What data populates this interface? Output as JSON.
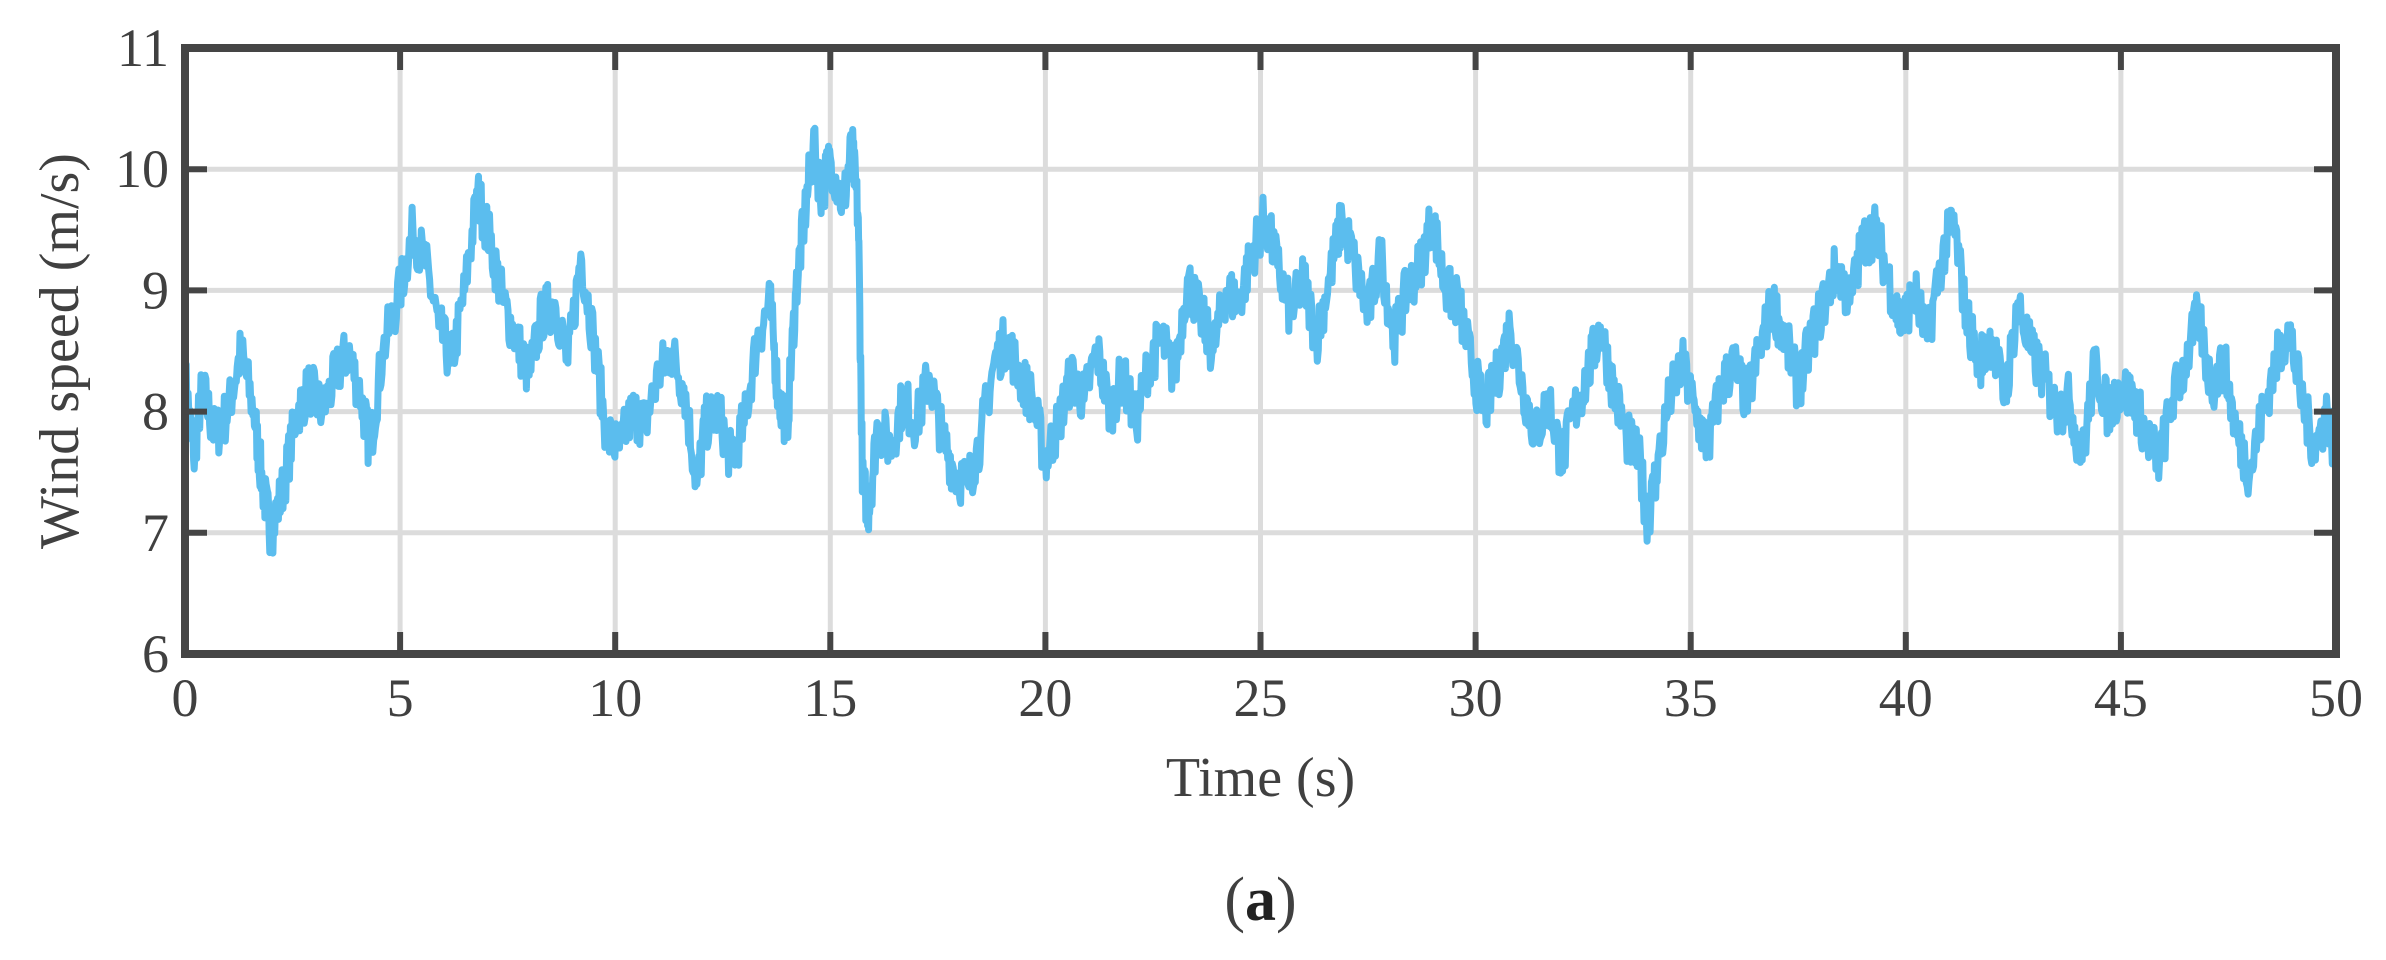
{
  "chart_data": {
    "type": "line",
    "title": "",
    "xlabel": "Time (s)",
    "ylabel": "Wind speed (m/s)",
    "xlim": [
      0,
      50
    ],
    "ylim": [
      6,
      11
    ],
    "xticks": [
      "0",
      "5",
      "10",
      "15",
      "20",
      "25",
      "30",
      "35",
      "40",
      "45",
      "50"
    ],
    "yticks": [
      "6",
      "7",
      "8",
      "9",
      "10",
      "11"
    ],
    "grid": true,
    "legend": "none",
    "panel_label": "(a)",
    "series": [
      {
        "color": "#5bbdee",
        "points": [
          [
            0.0,
            8.3
          ],
          [
            0.2,
            7.6
          ],
          [
            0.4,
            8.2
          ],
          [
            0.7,
            7.8
          ],
          [
            1.0,
            8.0
          ],
          [
            1.3,
            8.5
          ],
          [
            1.6,
            8.0
          ],
          [
            1.8,
            7.4
          ],
          [
            2.0,
            7.0
          ],
          [
            2.3,
            7.4
          ],
          [
            2.6,
            8.0
          ],
          [
            2.9,
            8.2
          ],
          [
            3.2,
            8.0
          ],
          [
            3.5,
            8.3
          ],
          [
            3.8,
            8.5
          ],
          [
            4.1,
            8.1
          ],
          [
            4.3,
            7.7
          ],
          [
            4.6,
            8.5
          ],
          [
            5.0,
            9.0
          ],
          [
            5.3,
            9.5
          ],
          [
            5.6,
            9.2
          ],
          [
            5.9,
            8.7
          ],
          [
            6.2,
            8.4
          ],
          [
            6.5,
            9.0
          ],
          [
            6.8,
            9.8
          ],
          [
            7.1,
            9.4
          ],
          [
            7.4,
            8.9
          ],
          [
            7.7,
            8.6
          ],
          [
            8.0,
            8.3
          ],
          [
            8.3,
            8.8
          ],
          [
            8.6,
            8.9
          ],
          [
            8.9,
            8.4
          ],
          [
            9.2,
            9.3
          ],
          [
            9.5,
            8.6
          ],
          [
            9.8,
            7.8
          ],
          [
            10.1,
            7.7
          ],
          [
            10.4,
            8.0
          ],
          [
            10.7,
            7.9
          ],
          [
            11.0,
            8.3
          ],
          [
            11.3,
            8.5
          ],
          [
            11.6,
            8.2
          ],
          [
            11.9,
            7.4
          ],
          [
            12.1,
            7.9
          ],
          [
            12.4,
            8.0
          ],
          [
            12.7,
            7.6
          ],
          [
            13.0,
            7.9
          ],
          [
            13.3,
            8.6
          ],
          [
            13.6,
            8.9
          ],
          [
            13.8,
            8.1
          ],
          [
            14.0,
            7.9
          ],
          [
            14.2,
            9.0
          ],
          [
            14.4,
            9.6
          ],
          [
            14.6,
            10.2
          ],
          [
            14.8,
            9.8
          ],
          [
            15.0,
            10.1
          ],
          [
            15.3,
            9.7
          ],
          [
            15.5,
            10.2
          ],
          [
            15.65,
            9.6
          ],
          [
            15.75,
            7.4
          ],
          [
            15.9,
            7.2
          ],
          [
            16.1,
            7.9
          ],
          [
            16.4,
            7.7
          ],
          [
            16.7,
            8.1
          ],
          [
            17.0,
            7.9
          ],
          [
            17.3,
            8.3
          ],
          [
            17.6,
            7.8
          ],
          [
            17.9,
            7.5
          ],
          [
            18.2,
            7.4
          ],
          [
            18.5,
            7.8
          ],
          [
            18.8,
            8.4
          ],
          [
            19.1,
            8.6
          ],
          [
            19.4,
            8.3
          ],
          [
            19.7,
            8.1
          ],
          [
            20.0,
            7.6
          ],
          [
            20.3,
            7.9
          ],
          [
            20.6,
            8.3
          ],
          [
            20.9,
            8.1
          ],
          [
            21.2,
            8.5
          ],
          [
            21.5,
            8.0
          ],
          [
            21.8,
            8.3
          ],
          [
            22.1,
            7.9
          ],
          [
            22.4,
            8.4
          ],
          [
            22.7,
            8.6
          ],
          [
            23.0,
            8.3
          ],
          [
            23.3,
            9.1
          ],
          [
            23.6,
            8.8
          ],
          [
            23.9,
            8.5
          ],
          [
            24.2,
            9.0
          ],
          [
            24.5,
            8.9
          ],
          [
            24.8,
            9.3
          ],
          [
            25.1,
            9.6
          ],
          [
            25.4,
            9.2
          ],
          [
            25.7,
            8.8
          ],
          [
            26.0,
            9.1
          ],
          [
            26.3,
            8.6
          ],
          [
            26.6,
            9.1
          ],
          [
            26.9,
            9.6
          ],
          [
            27.2,
            9.2
          ],
          [
            27.5,
            8.8
          ],
          [
            27.8,
            9.3
          ],
          [
            28.1,
            8.6
          ],
          [
            28.4,
            9.0
          ],
          [
            28.7,
            9.2
          ],
          [
            29.0,
            9.6
          ],
          [
            29.3,
            9.0
          ],
          [
            29.6,
            8.9
          ],
          [
            29.9,
            8.4
          ],
          [
            30.2,
            8.0
          ],
          [
            30.5,
            8.3
          ],
          [
            30.8,
            8.7
          ],
          [
            31.1,
            8.2
          ],
          [
            31.4,
            7.8
          ],
          [
            31.7,
            8.1
          ],
          [
            32.0,
            7.6
          ],
          [
            32.3,
            8.0
          ],
          [
            32.6,
            8.3
          ],
          [
            32.9,
            8.7
          ],
          [
            33.2,
            8.2
          ],
          [
            33.5,
            7.8
          ],
          [
            33.8,
            7.6
          ],
          [
            34.0,
            7.1
          ],
          [
            34.2,
            7.5
          ],
          [
            34.5,
            8.1
          ],
          [
            34.8,
            8.4
          ],
          [
            35.1,
            8.0
          ],
          [
            35.4,
            7.7
          ],
          [
            35.7,
            8.2
          ],
          [
            36.0,
            8.4
          ],
          [
            36.3,
            8.1
          ],
          [
            36.6,
            8.5
          ],
          [
            36.9,
            8.9
          ],
          [
            37.2,
            8.6
          ],
          [
            37.5,
            8.2
          ],
          [
            37.8,
            8.6
          ],
          [
            38.1,
            8.9
          ],
          [
            38.4,
            9.2
          ],
          [
            38.7,
            8.9
          ],
          [
            39.0,
            9.4
          ],
          [
            39.3,
            9.5
          ],
          [
            39.6,
            9.1
          ],
          [
            39.9,
            8.7
          ],
          [
            40.2,
            9.0
          ],
          [
            40.5,
            8.6
          ],
          [
            40.8,
            9.2
          ],
          [
            41.1,
            9.6
          ],
          [
            41.4,
            8.8
          ],
          [
            41.7,
            8.4
          ],
          [
            42.0,
            8.6
          ],
          [
            42.3,
            8.1
          ],
          [
            42.6,
            8.9
          ],
          [
            42.9,
            8.5
          ],
          [
            43.2,
            8.3
          ],
          [
            43.5,
            8.0
          ],
          [
            43.8,
            8.1
          ],
          [
            44.1,
            7.6
          ],
          [
            44.4,
            8.4
          ],
          [
            44.7,
            8.0
          ],
          [
            45.0,
            8.2
          ],
          [
            45.3,
            8.1
          ],
          [
            45.6,
            7.8
          ],
          [
            45.9,
            7.6
          ],
          [
            46.2,
            8.1
          ],
          [
            46.5,
            8.4
          ],
          [
            46.8,
            8.8
          ],
          [
            47.1,
            8.2
          ],
          [
            47.4,
            8.4
          ],
          [
            47.7,
            7.8
          ],
          [
            48.0,
            7.5
          ],
          [
            48.3,
            8.0
          ],
          [
            48.6,
            8.4
          ],
          [
            48.9,
            8.7
          ],
          [
            49.2,
            8.1
          ],
          [
            49.5,
            7.7
          ],
          [
            49.8,
            8.0
          ],
          [
            50.0,
            7.6
          ]
        ]
      }
    ]
  }
}
